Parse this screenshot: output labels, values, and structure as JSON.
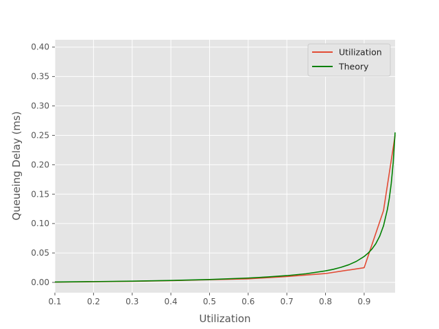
{
  "chart_data": {
    "type": "line",
    "xlabel": "Utilization",
    "ylabel": "Queueing Delay (ms)",
    "xlim": [
      0.1,
      0.98
    ],
    "ylim": [
      -0.0175,
      0.4125
    ],
    "x_ticks": [
      "0.1",
      "0.2",
      "0.3",
      "0.4",
      "0.5",
      "0.6",
      "0.7",
      "0.8",
      "0.9"
    ],
    "y_ticks": [
      "0.00",
      "0.05",
      "0.10",
      "0.15",
      "0.20",
      "0.25",
      "0.30",
      "0.35",
      "0.40"
    ],
    "grid": true,
    "legend_position": "top-right",
    "series": [
      {
        "name": "Utilization",
        "color": "#E24A33",
        "x": [
          0.1,
          0.2,
          0.3,
          0.4,
          0.5,
          0.6,
          0.7,
          0.8,
          0.9,
          0.95,
          0.98
        ],
        "y": [
          0.0005,
          0.001,
          0.0018,
          0.003,
          0.0045,
          0.006,
          0.01,
          0.015,
          0.025,
          0.122,
          0.25
        ]
      },
      {
        "name": "Theory",
        "color": "#008000",
        "x": [
          0.1,
          0.2,
          0.3,
          0.4,
          0.5,
          0.6,
          0.65,
          0.7,
          0.75,
          0.8,
          0.82,
          0.84,
          0.86,
          0.88,
          0.9,
          0.91,
          0.92,
          0.93,
          0.94,
          0.95,
          0.96,
          0.965,
          0.97,
          0.975,
          0.98
        ],
        "y": [
          0.0006,
          0.0013,
          0.0021,
          0.0033,
          0.0049,
          0.0074,
          0.0092,
          0.0115,
          0.0147,
          0.0196,
          0.0222,
          0.0256,
          0.0299,
          0.0358,
          0.0441,
          0.0496,
          0.0566,
          0.0657,
          0.0783,
          0.0961,
          0.124,
          0.143,
          0.168,
          0.203,
          0.255
        ]
      }
    ]
  }
}
